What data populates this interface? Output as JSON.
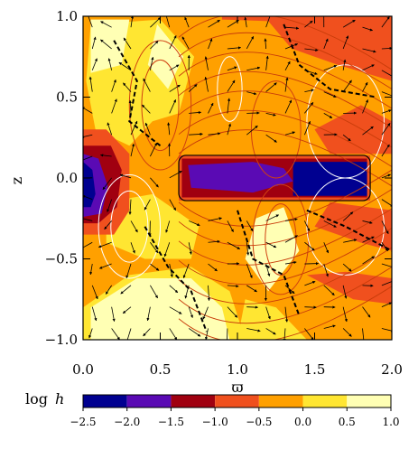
{
  "chart_data": {
    "type": "heatmap",
    "xlabel": "ϖ",
    "ylabel": "z",
    "xlim": [
      0.0,
      2.0
    ],
    "ylim": [
      -1.0,
      1.0
    ],
    "x_ticks": [
      {
        "value": 0.0,
        "label": "0.0"
      },
      {
        "value": 0.5,
        "label": "0.5"
      },
      {
        "value": 1.0,
        "label": "1.0"
      },
      {
        "value": 1.5,
        "label": "1.5"
      },
      {
        "value": 2.0,
        "label": "2.0"
      }
    ],
    "y_ticks": [
      {
        "value": 1.0,
        "label": "1.0"
      },
      {
        "value": 0.5,
        "label": "0.5"
      },
      {
        "value": 0.0,
        "label": "0.0"
      },
      {
        "value": -0.5,
        "label": "−0.5"
      },
      {
        "value": -1.0,
        "label": "−1.0"
      }
    ],
    "colorbar": {
      "label_prefix": "log",
      "label_var": "h",
      "ticks": [
        {
          "value": -2.5,
          "label": "−2.5"
        },
        {
          "value": -2.0,
          "label": "−2.0"
        },
        {
          "value": -1.5,
          "label": "−1.5"
        },
        {
          "value": -1.0,
          "label": "−1.0"
        },
        {
          "value": -0.5,
          "label": "−0.5"
        },
        {
          "value": 0.0,
          "label": "0.0"
        },
        {
          "value": 0.5,
          "label": "0.5"
        },
        {
          "value": 1.0,
          "label": "1.0"
        }
      ],
      "levels": [
        {
          "from": -2.5,
          "to": -2.0,
          "color": "#000090"
        },
        {
          "from": -2.0,
          "to": -1.5,
          "color": "#5a0ab4"
        },
        {
          "from": -1.5,
          "to": -1.0,
          "color": "#a00010"
        },
        {
          "from": -1.0,
          "to": -0.5,
          "color": "#f0501e"
        },
        {
          "from": -0.5,
          "to": 0.0,
          "color": "#ffa000"
        },
        {
          "from": 0.0,
          "to": 0.5,
          "color": "#ffe632"
        },
        {
          "from": 0.5,
          "to": 1.0,
          "color": "#ffffb4"
        }
      ]
    },
    "regions": [
      {
        "level": -0.5,
        "pts": [
          [
            0,
            -1
          ],
          [
            2,
            -1
          ],
          [
            2,
            1
          ],
          [
            0,
            1
          ]
        ]
      },
      {
        "level": 0.0,
        "pts": [
          [
            0,
            -0.8
          ],
          [
            0.3,
            -0.6
          ],
          [
            0.7,
            -0.55
          ],
          [
            0.95,
            -0.7
          ],
          [
            1.05,
            -1
          ],
          [
            0,
            -1
          ]
        ]
      },
      {
        "level": 0.5,
        "pts": [
          [
            0.05,
            -0.8
          ],
          [
            0.35,
            -0.62
          ],
          [
            0.7,
            -0.62
          ],
          [
            0.9,
            -0.8
          ],
          [
            0.95,
            -1
          ],
          [
            0.05,
            -1
          ]
        ]
      },
      {
        "level": 0.0,
        "pts": [
          [
            0.05,
            0.95
          ],
          [
            0.5,
            0.98
          ],
          [
            0.72,
            0.75
          ],
          [
            0.62,
            0.4
          ],
          [
            0.45,
            0.35
          ],
          [
            0.3,
            0.2
          ],
          [
            0.08,
            0.3
          ],
          [
            0.02,
            0.6
          ]
        ]
      },
      {
        "level": 0.5,
        "pts": [
          [
            0.05,
            0.98
          ],
          [
            0.3,
            0.98
          ],
          [
            0.25,
            0.7
          ],
          [
            0.05,
            0.65
          ]
        ]
      },
      {
        "level": 0.5,
        "pts": [
          [
            0.48,
            0.95
          ],
          [
            0.65,
            0.75
          ],
          [
            0.55,
            0.55
          ],
          [
            0.42,
            0.7
          ]
        ]
      },
      {
        "level": 0.0,
        "pts": [
          [
            0.15,
            -0.15
          ],
          [
            0.45,
            -0.1
          ],
          [
            0.75,
            -0.3
          ],
          [
            0.7,
            -0.5
          ],
          [
            0.4,
            -0.5
          ],
          [
            0.15,
            -0.4
          ]
        ]
      },
      {
        "level": 0.5,
        "pts": [
          [
            1.12,
            -0.25
          ],
          [
            1.3,
            -0.18
          ],
          [
            1.4,
            -0.45
          ],
          [
            1.2,
            -0.7
          ],
          [
            1.05,
            -0.5
          ]
        ]
      },
      {
        "level": 0.0,
        "pts": [
          [
            1.05,
            -0.75
          ],
          [
            1.25,
            -0.8
          ],
          [
            1.45,
            -1
          ],
          [
            1.0,
            -1
          ]
        ]
      },
      {
        "level": -1.0,
        "pts": [
          [
            0.9,
            0.98
          ],
          [
            1.2,
            0.97
          ],
          [
            1.35,
            0.8
          ],
          [
            1.65,
            0.7
          ],
          [
            2.0,
            0.6
          ],
          [
            2.0,
            1.0
          ],
          [
            0.9,
            1.0
          ]
        ]
      },
      {
        "level": -1.0,
        "pts": [
          [
            1.5,
            0.3
          ],
          [
            1.8,
            0.45
          ],
          [
            2.0,
            0.35
          ],
          [
            2.0,
            0.15
          ],
          [
            1.6,
            0.15
          ]
        ]
      },
      {
        "level": -1.0,
        "pts": [
          [
            1.5,
            -0.3
          ],
          [
            1.8,
            -0.4
          ],
          [
            2.0,
            -0.45
          ],
          [
            2.0,
            -0.2
          ],
          [
            1.6,
            -0.15
          ]
        ]
      },
      {
        "level": -1.0,
        "pts": [
          [
            1.45,
            -0.6
          ],
          [
            1.75,
            -0.75
          ],
          [
            2.0,
            -0.78
          ],
          [
            2.0,
            -0.62
          ],
          [
            1.7,
            -0.58
          ]
        ]
      },
      {
        "level": -1.0,
        "pts": [
          [
            0,
            0.3
          ],
          [
            0.15,
            0.3
          ],
          [
            0.3,
            0.15
          ],
          [
            0.3,
            -0.2
          ],
          [
            0.2,
            -0.35
          ],
          [
            0,
            -0.35
          ]
        ]
      },
      {
        "level": -1.5,
        "pts": [
          [
            0,
            0.2
          ],
          [
            0.18,
            0.2
          ],
          [
            0.25,
            0.05
          ],
          [
            0.22,
            -0.18
          ],
          [
            0.1,
            -0.28
          ],
          [
            0,
            -0.28
          ]
        ]
      },
      {
        "level": -2.0,
        "pts": [
          [
            0,
            0.15
          ],
          [
            0.1,
            0.12
          ],
          [
            0.16,
            -0.05
          ],
          [
            0.12,
            -0.22
          ],
          [
            0,
            -0.24
          ]
        ]
      },
      {
        "level": -2.5,
        "pts": [
          [
            0,
            0.1
          ],
          [
            0.06,
            0.05
          ],
          [
            0.08,
            -0.1
          ],
          [
            0.05,
            -0.18
          ],
          [
            0,
            -0.18
          ]
        ]
      },
      {
        "level": -1.0,
        "pts": [
          [
            0.62,
            0.14
          ],
          [
            1.86,
            0.14
          ],
          [
            1.86,
            -0.14
          ],
          [
            0.62,
            -0.14
          ]
        ]
      },
      {
        "level": -1.5,
        "pts": [
          [
            0.64,
            0.12
          ],
          [
            1.84,
            0.12
          ],
          [
            1.84,
            -0.12
          ],
          [
            0.64,
            -0.12
          ]
        ]
      },
      {
        "level": -2.0,
        "pts": [
          [
            0.68,
            0.08
          ],
          [
            1.1,
            0.1
          ],
          [
            1.3,
            0.06
          ],
          [
            1.36,
            -0.02
          ],
          [
            1.1,
            -0.09
          ],
          [
            0.7,
            -0.06
          ]
        ]
      },
      {
        "level": -2.5,
        "pts": [
          [
            1.36,
            0.1
          ],
          [
            1.84,
            0.1
          ],
          [
            1.84,
            -0.11
          ],
          [
            1.36,
            -0.11
          ]
        ]
      },
      {
        "level": -2.0,
        "pts": [
          [
            1.1,
            0.03
          ],
          [
            1.26,
            0.03
          ],
          [
            1.26,
            -0.05
          ],
          [
            1.1,
            -0.05
          ]
        ]
      }
    ],
    "disk_outline": {
      "x": [
        0.62,
        1.86
      ],
      "z": [
        -0.14,
        0.14
      ]
    }
  }
}
